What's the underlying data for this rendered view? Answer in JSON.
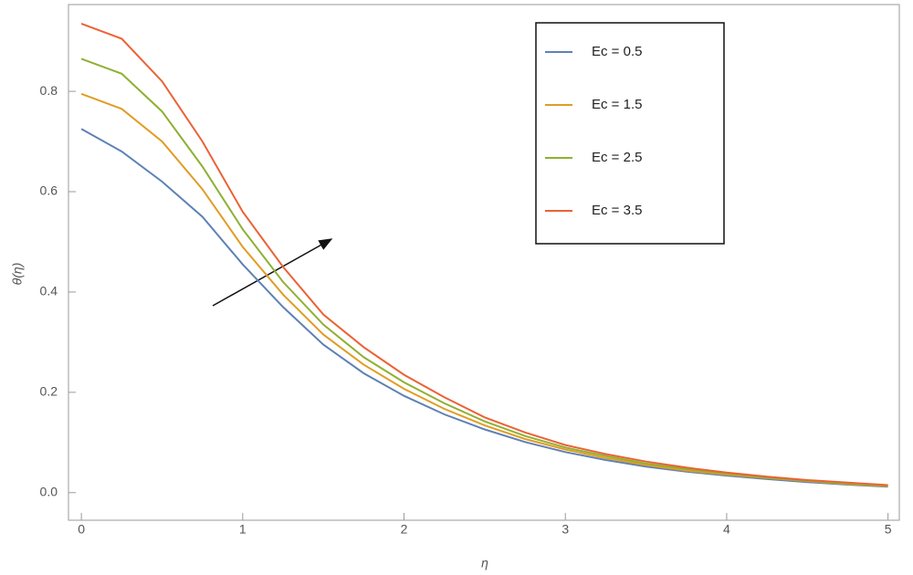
{
  "chart_data": {
    "type": "line",
    "x_label": "η",
    "y_label": "θ(η)",
    "x": [
      0,
      0.25,
      0.5,
      0.75,
      1,
      1.25,
      1.5,
      1.75,
      2,
      2.25,
      2.5,
      2.75,
      3,
      3.25,
      3.5,
      3.75,
      4,
      4.25,
      4.5,
      4.75,
      5
    ],
    "series": [
      {
        "name": "Ec = 0.5",
        "color": "#5e81b5",
        "values": [
          0.725,
          0.68,
          0.62,
          0.55,
          0.455,
          0.37,
          0.295,
          0.238,
          0.193,
          0.156,
          0.126,
          0.101,
          0.081,
          0.065,
          0.052,
          0.042,
          0.034,
          0.027,
          0.021,
          0.016,
          0.012
        ]
      },
      {
        "name": "Ec = 1.5",
        "color": "#e19c24",
        "values": [
          0.795,
          0.765,
          0.7,
          0.605,
          0.49,
          0.395,
          0.315,
          0.255,
          0.207,
          0.167,
          0.134,
          0.107,
          0.086,
          0.069,
          0.055,
          0.044,
          0.036,
          0.029,
          0.023,
          0.017,
          0.013
        ]
      },
      {
        "name": "Ec = 2.5",
        "color": "#8fb032",
        "values": [
          0.865,
          0.835,
          0.76,
          0.65,
          0.525,
          0.42,
          0.335,
          0.27,
          0.22,
          0.178,
          0.142,
          0.113,
          0.09,
          0.073,
          0.058,
          0.047,
          0.038,
          0.03,
          0.024,
          0.018,
          0.014
        ]
      },
      {
        "name": "Ec = 3.5",
        "color": "#eb6235",
        "values": [
          0.935,
          0.905,
          0.82,
          0.7,
          0.56,
          0.45,
          0.355,
          0.29,
          0.235,
          0.19,
          0.15,
          0.12,
          0.095,
          0.077,
          0.062,
          0.05,
          0.04,
          0.032,
          0.025,
          0.02,
          0.015
        ]
      }
    ],
    "xlim": [
      -0.08,
      5.07
    ],
    "ylim": [
      -0.055,
      0.973
    ],
    "xticks": [
      0,
      1,
      2,
      3,
      4,
      5
    ],
    "yticks": [
      {
        "value": 0,
        "label": "0.0"
      },
      0.2,
      0.4,
      0.6,
      0.8
    ],
    "legend": "upper right"
  }
}
